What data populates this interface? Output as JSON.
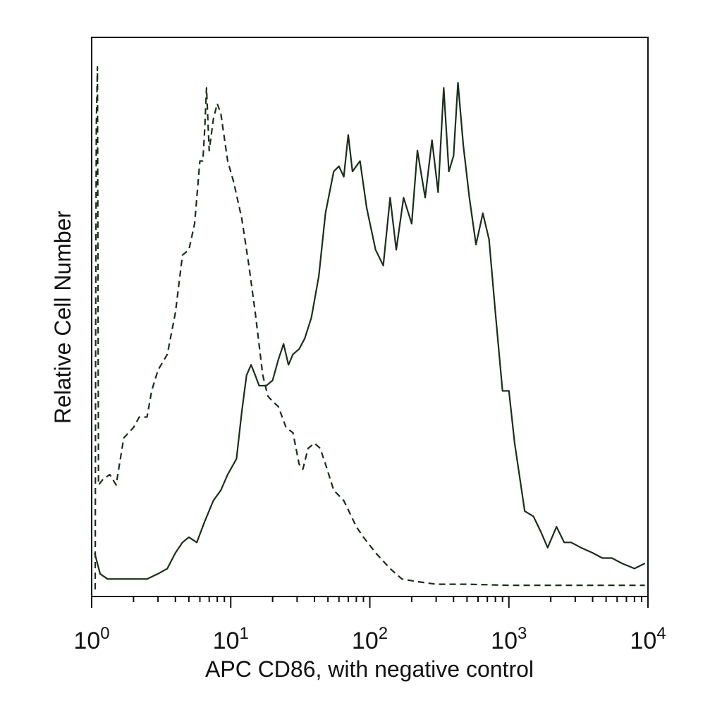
{
  "chart_data": {
    "type": "line",
    "title": "",
    "xlabel": "APC CD86, with negative control",
    "ylabel": "Relative Cell Number",
    "x_scale": "log",
    "xlim": [
      1,
      10000
    ],
    "ylim": [
      0,
      100
    ],
    "x_ticks": [
      {
        "value": 1,
        "base": "10",
        "exp": "0"
      },
      {
        "value": 10,
        "base": "10",
        "exp": "1"
      },
      {
        "value": 100,
        "base": "10",
        "exp": "2"
      },
      {
        "value": 1000,
        "base": "10",
        "exp": "3"
      },
      {
        "value": 10000,
        "base": "10",
        "exp": "4"
      }
    ],
    "grid": false,
    "colors": {
      "axis": "#111111",
      "line": "#1a2e1a"
    },
    "series": [
      {
        "style": "dashed",
        "points": [
          [
            1.06,
            0
          ],
          [
            1.07,
            55
          ],
          [
            1.08,
            89
          ],
          [
            1.1,
            100
          ],
          [
            1.12,
            20
          ],
          [
            1.2,
            21
          ],
          [
            1.35,
            22
          ],
          [
            1.5,
            20
          ],
          [
            1.7,
            29
          ],
          [
            2.0,
            31
          ],
          [
            2.2,
            33
          ],
          [
            2.5,
            33
          ],
          [
            2.7,
            38
          ],
          [
            3.0,
            42
          ],
          [
            3.5,
            45
          ],
          [
            4.0,
            53
          ],
          [
            4.5,
            64
          ],
          [
            5.0,
            65
          ],
          [
            5.5,
            70
          ],
          [
            6.0,
            82
          ],
          [
            6.3,
            82
          ],
          [
            6.5,
            88
          ],
          [
            6.7,
            96
          ],
          [
            7.0,
            84
          ],
          [
            7.5,
            90
          ],
          [
            8.0,
            93
          ],
          [
            8.5,
            91
          ],
          [
            9.5,
            82
          ],
          [
            10.5,
            78
          ],
          [
            12,
            71
          ],
          [
            13.5,
            62
          ],
          [
            15,
            53
          ],
          [
            17,
            41
          ],
          [
            18.5,
            37
          ],
          [
            20,
            36
          ],
          [
            22,
            35
          ],
          [
            25,
            31
          ],
          [
            28,
            30
          ],
          [
            31,
            24
          ],
          [
            33,
            23
          ],
          [
            36,
            27
          ],
          [
            40,
            28
          ],
          [
            44,
            27
          ],
          [
            48,
            24
          ],
          [
            55,
            19
          ],
          [
            65,
            17
          ],
          [
            80,
            12
          ],
          [
            90,
            10
          ],
          [
            110,
            7
          ],
          [
            140,
            4
          ],
          [
            170,
            2
          ],
          [
            220,
            1.5
          ],
          [
            300,
            1
          ],
          [
            500,
            1
          ],
          [
            1000,
            0.8
          ],
          [
            3000,
            0.8
          ],
          [
            9500,
            0.8
          ]
        ]
      },
      {
        "style": "solid",
        "points": [
          [
            1.05,
            7
          ],
          [
            1.15,
            3
          ],
          [
            1.3,
            2
          ],
          [
            1.6,
            2
          ],
          [
            2.0,
            2
          ],
          [
            2.5,
            2
          ],
          [
            3.0,
            3
          ],
          [
            3.5,
            4
          ],
          [
            4.0,
            7
          ],
          [
            4.5,
            9
          ],
          [
            5.0,
            10
          ],
          [
            5.7,
            9
          ],
          [
            6.5,
            13
          ],
          [
            7.5,
            17
          ],
          [
            8.5,
            19
          ],
          [
            9.5,
            22
          ],
          [
            11,
            25
          ],
          [
            12,
            34
          ],
          [
            13,
            41
          ],
          [
            14,
            43
          ],
          [
            15,
            41
          ],
          [
            16,
            39
          ],
          [
            18,
            39
          ],
          [
            20,
            40
          ],
          [
            22,
            44
          ],
          [
            24,
            47
          ],
          [
            26,
            43
          ],
          [
            28,
            45
          ],
          [
            31,
            46
          ],
          [
            34,
            48
          ],
          [
            38,
            52
          ],
          [
            43,
            60
          ],
          [
            48,
            72
          ],
          [
            55,
            80
          ],
          [
            60,
            81
          ],
          [
            65,
            79
          ],
          [
            70,
            87
          ],
          [
            75,
            80
          ],
          [
            85,
            82
          ],
          [
            95,
            73
          ],
          [
            110,
            65
          ],
          [
            125,
            62
          ],
          [
            140,
            75
          ],
          [
            155,
            65
          ],
          [
            175,
            75
          ],
          [
            200,
            70
          ],
          [
            220,
            84
          ],
          [
            250,
            75
          ],
          [
            280,
            86
          ],
          [
            310,
            76
          ],
          [
            340,
            96
          ],
          [
            370,
            80
          ],
          [
            400,
            83
          ],
          [
            430,
            97
          ],
          [
            470,
            85
          ],
          [
            520,
            75
          ],
          [
            580,
            66
          ],
          [
            650,
            72
          ],
          [
            720,
            67
          ],
          [
            800,
            53
          ],
          [
            900,
            38
          ],
          [
            1000,
            38
          ],
          [
            1100,
            28
          ],
          [
            1300,
            15
          ],
          [
            1500,
            14
          ],
          [
            1700,
            11
          ],
          [
            1900,
            8
          ],
          [
            2200,
            12
          ],
          [
            2500,
            9
          ],
          [
            2800,
            9
          ],
          [
            3300,
            8
          ],
          [
            4000,
            7
          ],
          [
            4700,
            6
          ],
          [
            5500,
            6
          ],
          [
            6500,
            5
          ],
          [
            8000,
            4
          ],
          [
            9500,
            5
          ]
        ]
      }
    ]
  }
}
